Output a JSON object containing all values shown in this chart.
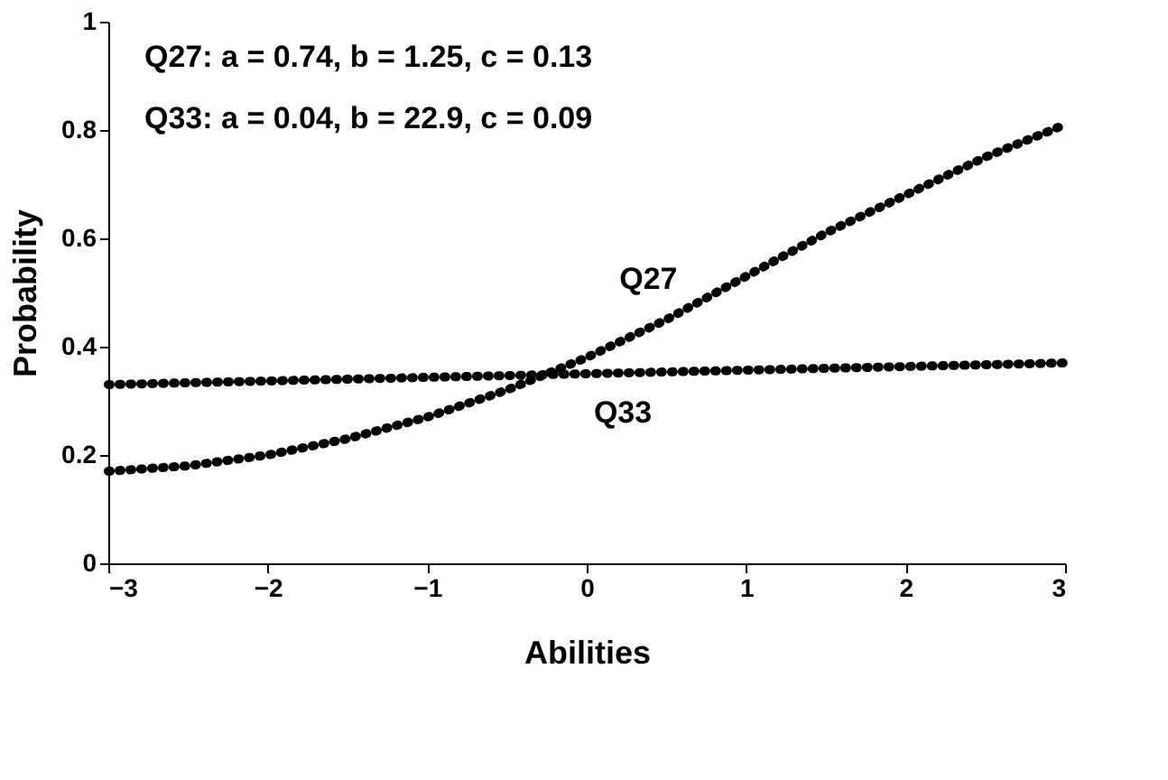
{
  "chart_data": {
    "type": "line",
    "xlabel": "Abilities",
    "ylabel": "Probability",
    "annotations": [
      "Q27: a = 0.74, b = 1.25, c = 0.13",
      "Q33: a = 0.04, b = 22.9, c = 0.09"
    ],
    "series": [
      {
        "name": "Q27",
        "color": "#000000",
        "x": [
          -3,
          -2.5,
          -2,
          -1.5,
          -1,
          -0.5,
          0,
          0.5,
          1,
          1.5,
          2,
          2.5,
          3
        ],
        "values": [
          0.17,
          0.18,
          0.2,
          0.23,
          0.27,
          0.32,
          0.38,
          0.45,
          0.53,
          0.61,
          0.68,
          0.75,
          0.81
        ]
      },
      {
        "name": "Q33",
        "color": "#000000",
        "x": [
          -3,
          -1.5,
          0,
          1.5,
          3
        ],
        "values": [
          0.33,
          0.34,
          0.35,
          0.36,
          0.37
        ]
      }
    ],
    "xlim": [
      -3,
      3
    ],
    "xticks": [
      {
        "value": -3,
        "label": "−3"
      },
      {
        "value": -2,
        "label": "−2"
      },
      {
        "value": -1,
        "label": "−1"
      },
      0,
      1,
      2,
      3
    ],
    "ylim": [
      0,
      1
    ],
    "yticks": [
      0,
      0.2,
      0.4,
      0.6,
      0.8,
      1
    ],
    "grid": false,
    "line_style": "dotted",
    "marker": "none"
  }
}
